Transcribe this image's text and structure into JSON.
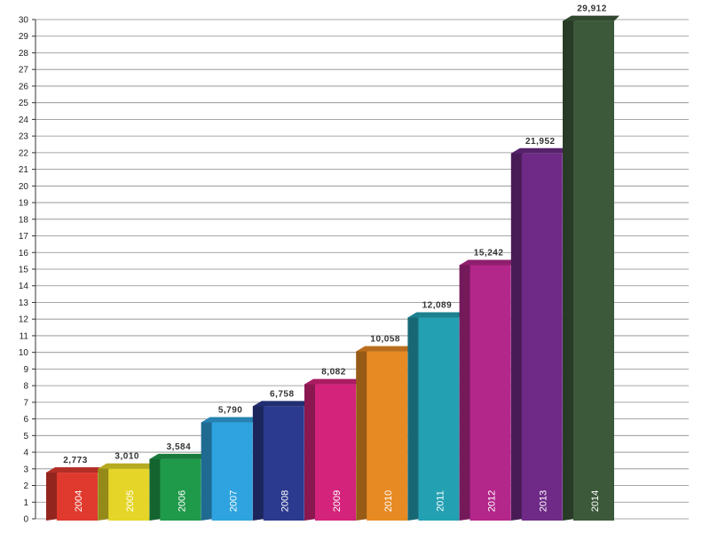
{
  "chart_data": {
    "type": "bar",
    "categories": [
      "2004",
      "2005",
      "2006",
      "2007",
      "2008",
      "2009",
      "2010",
      "2011",
      "2012",
      "2013",
      "2014"
    ],
    "values": [
      2.773,
      3.01,
      3.584,
      5.79,
      6.758,
      8.082,
      10.058,
      12.089,
      15.242,
      21.952,
      29.912
    ],
    "data_labels": [
      "2,773",
      "3,010",
      "3,584",
      "5,790",
      "6,758",
      "8,082",
      "10,058",
      "12,089",
      "15,242",
      "21,952",
      "29,912"
    ],
    "y_ticks": [
      "0",
      "1",
      "2",
      "3",
      "4",
      "5",
      "6",
      "7",
      "8",
      "9",
      "10",
      "11",
      "12",
      "13",
      "14",
      "15",
      "16",
      "17",
      "18",
      "19",
      "20",
      "21",
      "22",
      "23",
      "24",
      "25",
      "26",
      "27",
      "28",
      "29",
      "30"
    ],
    "ylim": [
      0,
      30
    ],
    "grid": true,
    "legend": "none",
    "title": "",
    "xlabel": "",
    "ylabel": "",
    "colors": [
      "#e03a2e",
      "#e4d528",
      "#1f9a4a",
      "#2ea3df",
      "#2b3a8e",
      "#d4237b",
      "#e88a24",
      "#23a0b2",
      "#b3268a",
      "#6e2a86",
      "#3c5a3a"
    ],
    "style": "3d-bars-with-rotated-category-labels"
  }
}
